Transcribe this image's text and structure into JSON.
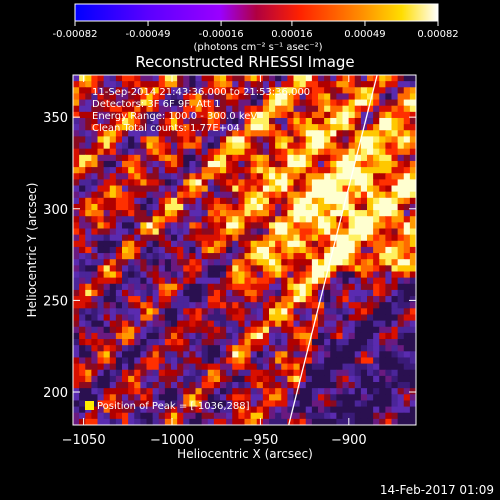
{
  "colorbar": {
    "tick_labels": [
      "-0.00082",
      "-0.00049",
      "-0.00016",
      "0.00016",
      "0.00049",
      "0.00082"
    ],
    "units": "(photons cm⁻² s⁻¹ asec⁻²)",
    "colors": [
      "#0000ff",
      "#5a00ff",
      "#9a00ff",
      "#b00040",
      "#ff2200",
      "#ff8800",
      "#ffdd00",
      "#ffffff"
    ]
  },
  "title": "Reconstructed RHESSI Image",
  "annotations": [
    "11-Sep-2014 21:43:36.000 to 21:53:36.000",
    "Detectors: 3F 6F 9F, Att 1",
    "Energy Range: 100.0 - 300.0 keV",
    "Clean    Total counts: 1.77E+04"
  ],
  "peak_label": "Position of Peak = [-1036,288]",
  "footer_stamp": "14-Feb-2017 01:09",
  "chart_data": {
    "type": "heatmap",
    "title": "Reconstructed RHESSI Image",
    "xlabel": "Heliocentric X (arcsec)",
    "ylabel": "Heliocentric Y (arcsec)",
    "xlim": [
      -1056,
      -862
    ],
    "ylim": [
      182,
      373
    ],
    "x_ticks": [
      -1050,
      -1000,
      -950,
      -900
    ],
    "y_ticks": [
      200,
      250,
      300,
      350
    ],
    "limb_line": [
      [
        -934,
        182
      ],
      [
        -884,
        373
      ]
    ],
    "peak": [
      -1036,
      288
    ],
    "value_range": [
      -0.00082,
      0.00082
    ]
  }
}
